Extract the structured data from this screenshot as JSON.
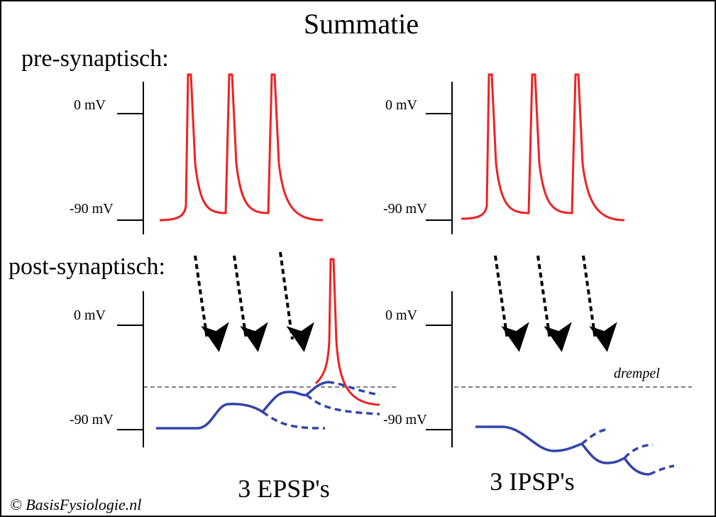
{
  "title": "Summatie",
  "pre_label": "pre-synaptisch:",
  "post_label": "post-synaptisch:",
  "axis": {
    "zero": "0 mV",
    "minus90": "-90 mV"
  },
  "threshold_label": "drempel",
  "epsp_label": "3 EPSP's",
  "ipsp_label": "3 IPSP's",
  "copyright": "© BasisFysiologie.nl",
  "colors": {
    "action_potential": "#ee2222",
    "psp": "#3344aa",
    "ink": "#000000"
  }
}
